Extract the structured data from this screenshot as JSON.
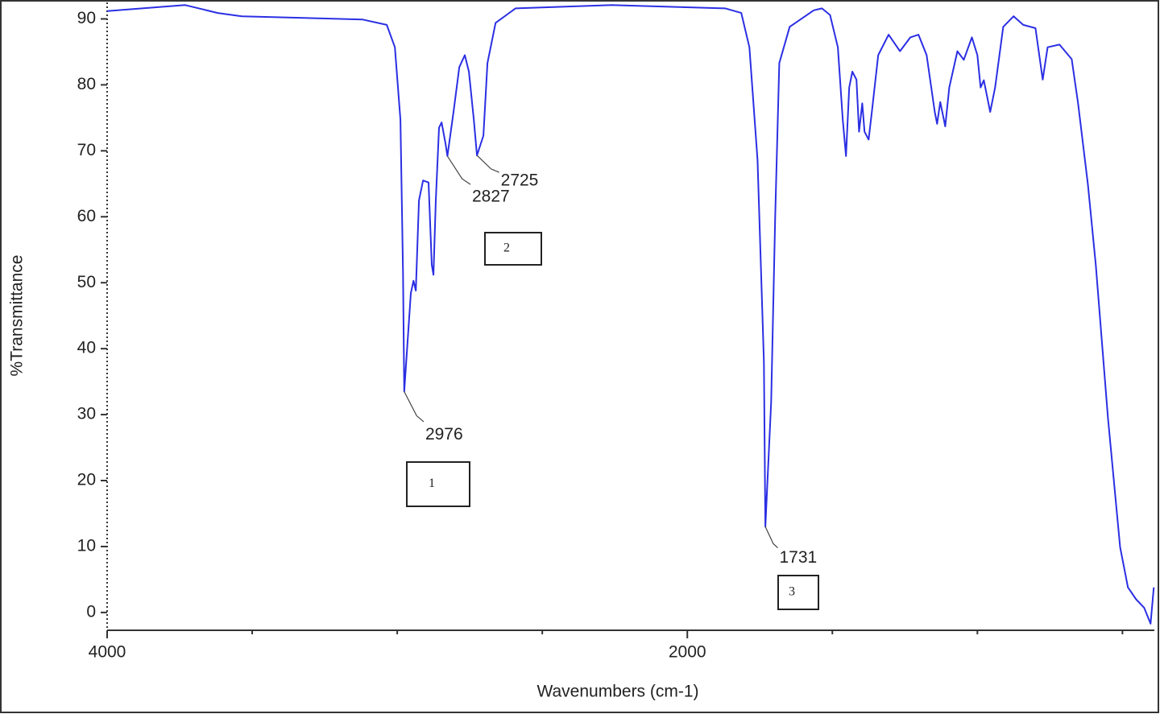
{
  "chart_data": {
    "type": "line",
    "x_label": "Wavenumbers (cm-1)",
    "y_label": "%Transmittance",
    "color": "#2b2fe3",
    "xlim": [
      4000,
      390
    ],
    "ylim": [
      -2.7,
      92.5
    ],
    "xticks": [
      4000,
      2000
    ],
    "xminorticks": [
      3500,
      3000,
      2500,
      1500,
      1000,
      500
    ],
    "yticks": [
      0,
      10,
      20,
      30,
      40,
      50,
      60,
      70,
      80,
      90
    ],
    "x": [
      4000,
      3731,
      3619,
      3536,
      3119,
      3036,
      3008,
      2989,
      2980,
      2976,
      2953,
      2944,
      2936,
      2925,
      2911,
      2892,
      2881,
      2875,
      2867,
      2856,
      2847,
      2833,
      2827,
      2806,
      2786,
      2767,
      2753,
      2736,
      2725,
      2703,
      2689,
      2661,
      2592,
      2258,
      1869,
      1814,
      1786,
      1758,
      1736,
      1731,
      1711,
      1697,
      1683,
      1647,
      1564,
      1536,
      1508,
      1481,
      1464,
      1453,
      1442,
      1431,
      1417,
      1408,
      1397,
      1389,
      1375,
      1364,
      1342,
      1306,
      1267,
      1231,
      1203,
      1175,
      1147,
      1139,
      1128,
      1111,
      1097,
      1069,
      1047,
      1019,
      1000,
      989,
      978,
      956,
      939,
      911,
      875,
      842,
      800,
      775,
      758,
      717,
      675,
      653,
      619,
      592,
      550,
      508,
      481,
      453,
      425,
      403,
      392
    ],
    "values": [
      91.2,
      92.1,
      90.9,
      90.4,
      89.9,
      89.1,
      85.7,
      74.7,
      51.5,
      33.5,
      48.4,
      50.3,
      48.8,
      62.5,
      65.5,
      65.2,
      52.7,
      51.2,
      62.5,
      73.5,
      74.3,
      71.0,
      69.2,
      75.9,
      82.7,
      84.5,
      82.0,
      74.7,
      69.3,
      72.3,
      83.3,
      89.4,
      91.6,
      92.1,
      91.6,
      90.9,
      85.7,
      68.6,
      38.0,
      13.0,
      31.9,
      60.0,
      83.3,
      88.8,
      91.3,
      91.6,
      90.6,
      85.7,
      74.7,
      69.2,
      79.6,
      82.0,
      80.8,
      72.9,
      77.2,
      72.9,
      71.7,
      75.9,
      84.5,
      87.6,
      85.1,
      87.2,
      87.6,
      84.5,
      75.9,
      74.1,
      77.4,
      73.7,
      79.6,
      85.1,
      83.8,
      87.2,
      84.5,
      79.6,
      80.7,
      75.9,
      79.6,
      88.8,
      90.4,
      89.1,
      88.6,
      80.8,
      85.7,
      86.1,
      83.9,
      77.2,
      64.9,
      52.7,
      29.5,
      9.9,
      3.8,
      2.0,
      0.7,
      -1.7,
      3.8
    ],
    "annotations": [
      {
        "x": 2976,
        "y": 33.5
      },
      {
        "x": 2827,
        "y": 69.2
      },
      {
        "x": 2725,
        "y": 69.3
      },
      {
        "x": 1731,
        "y": 13.0
      }
    ],
    "boxes": [
      "1",
      "2",
      "3"
    ]
  }
}
